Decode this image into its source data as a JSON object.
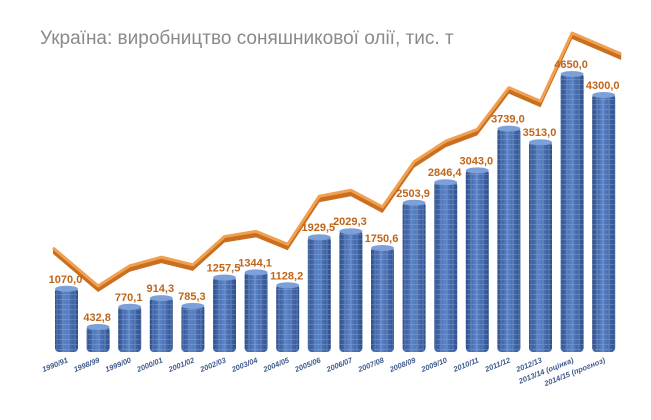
{
  "chart_data": {
    "type": "bar",
    "title": "Україна: виробництво соняшникової олії, тис. т",
    "xlabel": "",
    "ylabel": "",
    "ylim": [
      0,
      5000
    ],
    "grid": false,
    "legend": "none",
    "categories": [
      "1990/91",
      "1998/99",
      "1999/00",
      "2000/01",
      "2001/02",
      "2002/03",
      "2003/04",
      "2004/05",
      "2005/06",
      "2006/07",
      "2007/08",
      "2008/09",
      "2009/10",
      "2010/11",
      "2011/12",
      "2012/13",
      "2013/14 (оцінка)",
      "2014/15 (прогноз)"
    ],
    "values": [
      1070.0,
      432.8,
      770.1,
      914.3,
      785.3,
      1257.5,
      1344.1,
      1128.2,
      1929.5,
      2029.3,
      1750.6,
      2503.9,
      2846.4,
      3043.0,
      3739.0,
      3513.0,
      4650.0,
      4300.0
    ],
    "value_labels": [
      "1070,0",
      "432,8",
      "770,1",
      "914,3",
      "785,3",
      "1257,5",
      "1344,1",
      "1128,2",
      "1929,5",
      "2029,3",
      "1750,6",
      "2503,9",
      "2846,4",
      "3043,0",
      "3739,0",
      "3513,0",
      "4650,0",
      "4300,0"
    ],
    "colors": {
      "bar": "#4a72b8",
      "bar_dark": "#2e4f8c",
      "trend": "#e0862e",
      "label": "#c0651a",
      "title": "#8a8a8a"
    }
  }
}
